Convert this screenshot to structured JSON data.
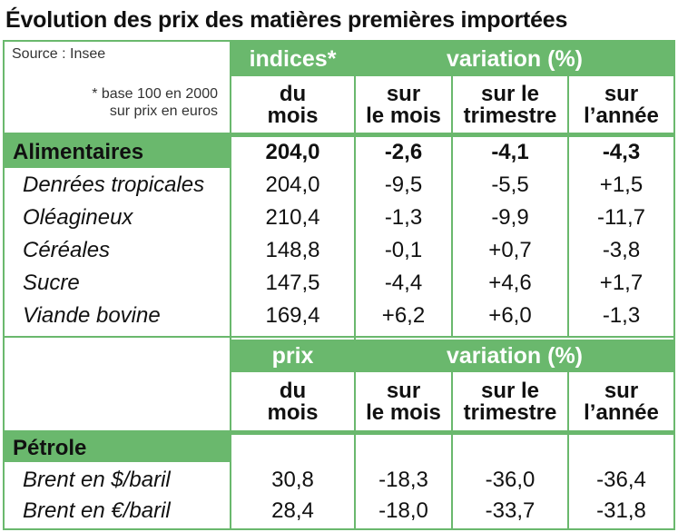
{
  "title": "Évolution des prix des matières premières importées",
  "source": "Source : Insee",
  "note_line1": "* base 100 en 2000",
  "note_line2": "sur prix en euros",
  "section1": {
    "head_left": "indices*",
    "head_right": "variation (%)",
    "cols": [
      {
        "l1": "du",
        "l2": "mois"
      },
      {
        "l1": "sur",
        "l2": "le mois"
      },
      {
        "l1": "sur le",
        "l2": "trimestre"
      },
      {
        "l1": "sur",
        "l2": "l’année"
      }
    ],
    "category": {
      "label": "Alimentaires",
      "values": [
        "204,0",
        "-2,6",
        "-4,1",
        "-4,3"
      ]
    },
    "rows": [
      {
        "label": "Denrées tropicales",
        "values": [
          "204,0",
          "-9,5",
          "-5,5",
          "+1,5"
        ]
      },
      {
        "label": "Oléagineux",
        "values": [
          "210,4",
          "-1,3",
          "-9,9",
          "-11,7"
        ]
      },
      {
        "label": "Céréales",
        "values": [
          "148,8",
          "-0,1",
          "+0,7",
          "-3,8"
        ]
      },
      {
        "label": "Sucre",
        "values": [
          "147,5",
          "-4,4",
          "+4,6",
          "+1,7"
        ]
      },
      {
        "label": "Viande bovine",
        "values": [
          "169,4",
          "+6,2",
          "+6,0",
          "-1,3"
        ]
      }
    ]
  },
  "section2": {
    "head_left": "prix",
    "head_right": "variation (%)",
    "cols": [
      {
        "l1": "du",
        "l2": "mois"
      },
      {
        "l1": "sur",
        "l2": "le mois"
      },
      {
        "l1": "sur le",
        "l2": "trimestre"
      },
      {
        "l1": "sur",
        "l2": "l’année"
      }
    ],
    "category": {
      "label": "Pétrole"
    },
    "rows": [
      {
        "label": "Brent en $/baril",
        "values": [
          "30,8",
          "-18,3",
          "-36,0",
          "-36,4"
        ]
      },
      {
        "label": "Brent en €/baril",
        "values": [
          "28,4",
          "-18,0",
          "-33,7",
          "-31,8"
        ]
      }
    ]
  },
  "colors": {
    "accent": "#6ab86d",
    "text": "#111111"
  }
}
